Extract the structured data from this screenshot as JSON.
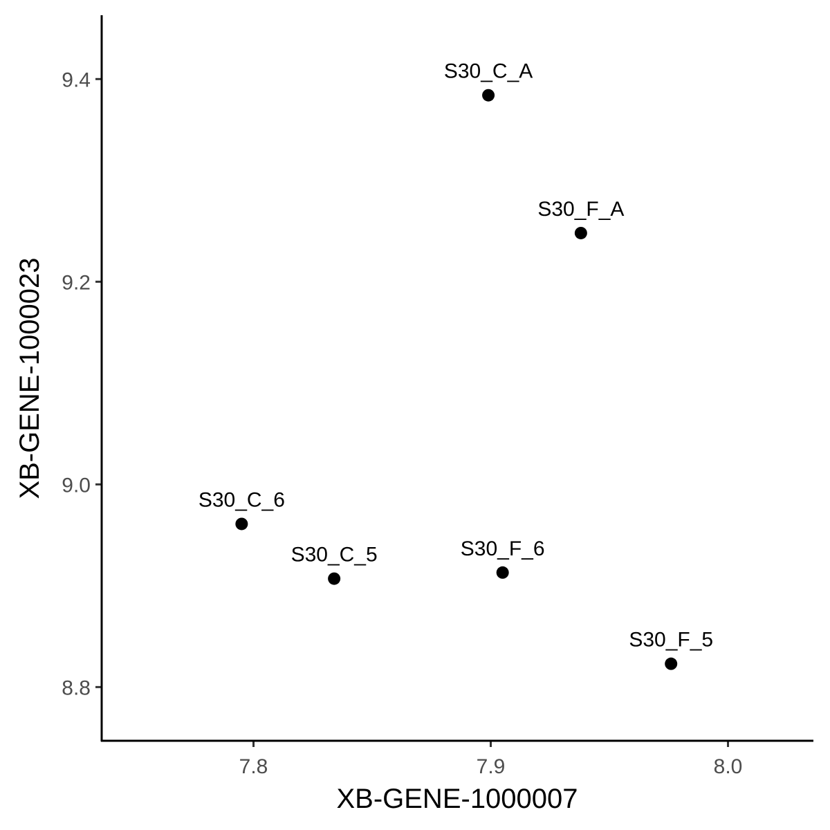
{
  "chart_data": {
    "type": "scatter",
    "title": "",
    "xlabel": "XB-GENE-1000007",
    "ylabel": "XB-GENE-1000023",
    "xlim": [
      7.736,
      8.036
    ],
    "ylim": [
      8.747,
      9.463
    ],
    "x_ticks": [
      7.8,
      7.9,
      8.0
    ],
    "x_tick_labels": [
      "7.8",
      "7.9",
      "8.0"
    ],
    "y_ticks": [
      8.8,
      9.0,
      9.2,
      9.4
    ],
    "y_tick_labels": [
      "8.8",
      "9.0",
      "9.2",
      "9.4"
    ],
    "grid": false,
    "legend": "none",
    "point_color": "#000000",
    "points": [
      {
        "label": "S30_C_A",
        "x": 7.899,
        "y": 9.384
      },
      {
        "label": "S30_F_A",
        "x": 7.938,
        "y": 9.248
      },
      {
        "label": "S30_C_6",
        "x": 7.795,
        "y": 8.961
      },
      {
        "label": "S30_C_5",
        "x": 7.834,
        "y": 8.907
      },
      {
        "label": "S30_F_6",
        "x": 7.905,
        "y": 8.913
      },
      {
        "label": "S30_F_5",
        "x": 7.976,
        "y": 8.823
      }
    ]
  }
}
